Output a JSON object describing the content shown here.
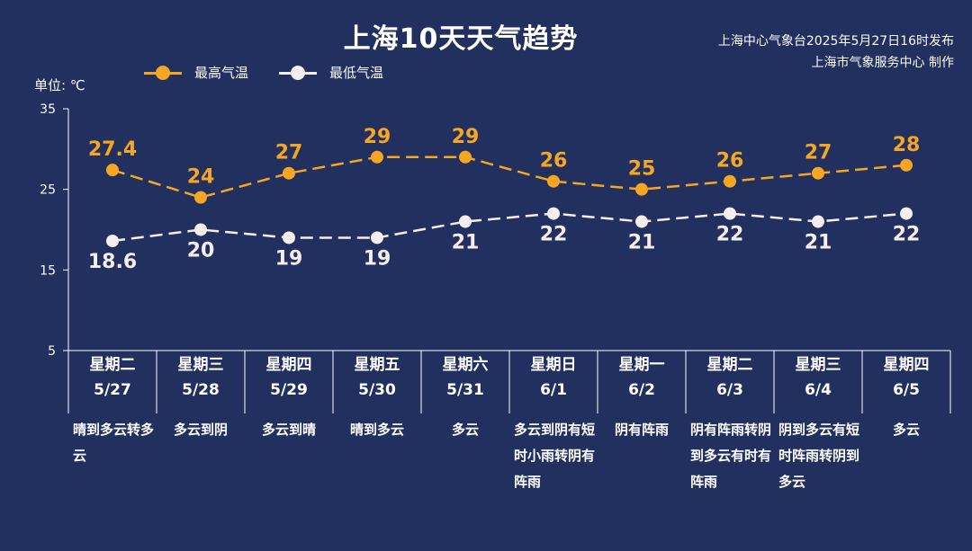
{
  "header": {
    "title": "上海10天天气趋势",
    "issuer_line1": "上海中心气象台2025年5月27日16时发布",
    "issuer_line2": "上海市气象服务中心 制作",
    "unit_label": "单位: ℃"
  },
  "legend": {
    "high": "最高气温",
    "low": "最低气温"
  },
  "colors": {
    "background": "#22305f",
    "high": "#f5a623",
    "low": "#f6eeee",
    "axis": "#ffffff"
  },
  "days": [
    {
      "weekday": "星期二",
      "date": "5/27",
      "desc": "晴到多云转多云"
    },
    {
      "weekday": "星期三",
      "date": "5/28",
      "desc": "多云到阴"
    },
    {
      "weekday": "星期四",
      "date": "5/29",
      "desc": "多云到晴"
    },
    {
      "weekday": "星期五",
      "date": "5/30",
      "desc": "晴到多云"
    },
    {
      "weekday": "星期六",
      "date": "5/31",
      "desc": "多云"
    },
    {
      "weekday": "星期日",
      "date": "6/1",
      "desc": "多云到阴有短时小雨转阴有阵雨"
    },
    {
      "weekday": "星期一",
      "date": "6/2",
      "desc": "阴有阵雨"
    },
    {
      "weekday": "星期二",
      "date": "6/3",
      "desc": "阴有阵雨转阴到多云有时有阵雨"
    },
    {
      "weekday": "星期三",
      "date": "6/4",
      "desc": "阴到多云有短时阵雨转阴到多云"
    },
    {
      "weekday": "星期四",
      "date": "6/5",
      "desc": "多云"
    }
  ],
  "chart_data": {
    "type": "line",
    "title": "上海10天天气趋势",
    "ylabel": "单位: ℃",
    "ylim": [
      5,
      35
    ],
    "yticks": [
      5,
      15,
      25,
      35
    ],
    "categories": [
      "5/27",
      "5/28",
      "5/29",
      "5/30",
      "5/31",
      "6/1",
      "6/2",
      "6/3",
      "6/4",
      "6/5"
    ],
    "series": [
      {
        "name": "最高气温",
        "values": [
          27.4,
          24,
          27,
          29,
          29,
          26,
          25,
          26,
          27,
          28
        ],
        "labels": [
          "27.4",
          "24",
          "27",
          "29",
          "29",
          "26",
          "25",
          "26",
          "27",
          "28"
        ]
      },
      {
        "name": "最低气温",
        "values": [
          18.6,
          20,
          19,
          19,
          21,
          22,
          21,
          22,
          21,
          22
        ],
        "labels": [
          "18.6",
          "20",
          "19",
          "19",
          "21",
          "22",
          "21",
          "22",
          "21",
          "22"
        ]
      }
    ]
  }
}
